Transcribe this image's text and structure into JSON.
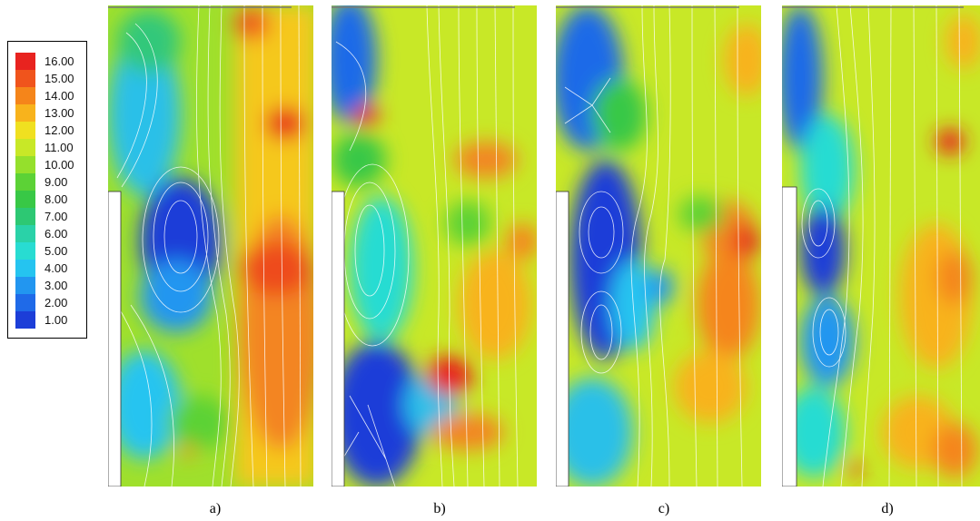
{
  "legend": {
    "levels": [
      {
        "label": "16.00",
        "color": "#e8231f"
      },
      {
        "label": "15.00",
        "color": "#f0541c"
      },
      {
        "label": "14.00",
        "color": "#f5851a"
      },
      {
        "label": "13.00",
        "color": "#f8b31c"
      },
      {
        "label": "12.00",
        "color": "#f0e020"
      },
      {
        "label": "11.00",
        "color": "#c8e827"
      },
      {
        "label": "10.00",
        "color": "#95e02c"
      },
      {
        "label": "9.00",
        "color": "#5cd236"
      },
      {
        "label": "8.00",
        "color": "#38c846"
      },
      {
        "label": "7.00",
        "color": "#2dc873"
      },
      {
        "label": "6.00",
        "color": "#2ad2a8"
      },
      {
        "label": "5.00",
        "color": "#28dcd2"
      },
      {
        "label": "4.00",
        "color": "#25c4f0"
      },
      {
        "label": "3.00",
        "color": "#2296f0"
      },
      {
        "label": "2.00",
        "color": "#1f6ae8"
      },
      {
        "label": "1.00",
        "color": "#1c3ed8"
      }
    ]
  },
  "panels": [
    {
      "caption": "a)"
    },
    {
      "caption": "b)"
    },
    {
      "caption": "c)"
    },
    {
      "caption": "d)"
    }
  ]
}
